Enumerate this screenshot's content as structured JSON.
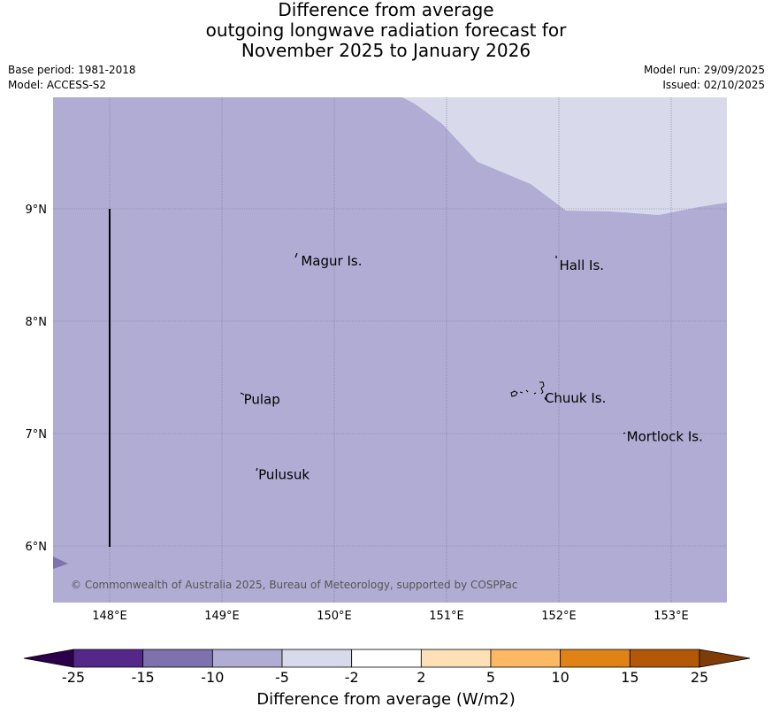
{
  "title": {
    "line1": "Difference from average",
    "line2": "outgoing longwave radiation forecast for",
    "line3": "November 2025 to January 2026"
  },
  "meta": {
    "base_period": "Base period: 1981-2018",
    "model": "Model: ACCESS-S2",
    "model_run": "Model run: 29/09/2025",
    "issued": "Issued: 02/10/2025"
  },
  "map": {
    "lon_ticks": [
      "148°E",
      "149°E",
      "150°E",
      "151°E",
      "152°E",
      "153°E"
    ],
    "lat_ticks": [
      "9°N",
      "8°N",
      "7°N",
      "6°N"
    ],
    "places": [
      {
        "name": "Magur Is.",
        "lon": 149.68,
        "lat": 8.55
      },
      {
        "name": "Hall Is.",
        "lon": 151.98,
        "lat": 8.51
      },
      {
        "name": "Pulap",
        "lon": 149.17,
        "lat": 7.32
      },
      {
        "name": "Chuuk Is.",
        "lon": 151.85,
        "lat": 7.33
      },
      {
        "name": "Mortlock Is.",
        "lon": 152.58,
        "lat": 6.99
      },
      {
        "name": "Pulusuk",
        "lon": 149.3,
        "lat": 6.65
      }
    ],
    "copyright": "© Commonwealth of Australia 2025, Bureau of Meteorology, supported by COSPPac",
    "colors": {
      "main": "#b1acd3",
      "light": "#d8d9ea",
      "dark": "#7d72ae"
    }
  },
  "colorbar": {
    "title": "Difference from average (W/m2)",
    "ticks": [
      "-25",
      "-15",
      "-10",
      "-5",
      "-2",
      "2",
      "5",
      "10",
      "15",
      "25"
    ],
    "bins": [
      "#56278a",
      "#7d72ae",
      "#b1acd3",
      "#d8d9ea",
      "#ffffff",
      "#fee0b6",
      "#fdb863",
      "#e08214",
      "#b35806"
    ],
    "under": "#2d004b",
    "over": "#7f3b08"
  }
}
